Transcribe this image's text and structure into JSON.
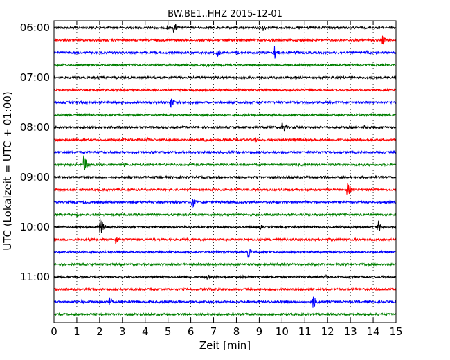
{
  "chart_data": {
    "type": "line",
    "title": "BW.BE1..HHZ 2015-12-01",
    "xlabel": "Zeit  [min]",
    "ylabel": "UTC (Lokalzeit = UTC + 01:00)",
    "xlim": [
      0,
      15
    ],
    "x_ticks": [
      0,
      1,
      2,
      3,
      4,
      5,
      6,
      7,
      8,
      9,
      10,
      11,
      12,
      13,
      14,
      15
    ],
    "y_tick_labels": [
      "06:00",
      "07:00",
      "08:00",
      "09:00",
      "10:00",
      "11:00"
    ],
    "row_minutes": 15,
    "grid": "vertical dotted",
    "series_colors": [
      "#000000",
      "#ff0000",
      "#0000ff",
      "#008000"
    ],
    "traces": [
      {
        "start": "06:00",
        "color": "#000000",
        "events": [
          {
            "x": 5.25,
            "amp": 9
          },
          {
            "x": 9.15,
            "amp": 6
          },
          {
            "x": 4.95,
            "amp": 5
          },
          {
            "x": 9.6,
            "amp": 4
          }
        ]
      },
      {
        "start": "06:15",
        "color": "#ff0000",
        "events": [
          {
            "x": 14.4,
            "amp": 8
          },
          {
            "x": 5.6,
            "amp": 3
          }
        ]
      },
      {
        "start": "06:30",
        "color": "#0000ff",
        "events": [
          {
            "x": 7.15,
            "amp": 8
          },
          {
            "x": 9.65,
            "amp": 12
          },
          {
            "x": 10.55,
            "amp": 7
          },
          {
            "x": 8.0,
            "amp": 4
          },
          {
            "x": 13.7,
            "amp": 5
          }
        ]
      },
      {
        "start": "06:45",
        "color": "#008000",
        "events": [
          {
            "x": 6.7,
            "amp": 3
          }
        ]
      },
      {
        "start": "07:00",
        "color": "#000000",
        "events": [
          {
            "x": 4.2,
            "amp": 3
          }
        ]
      },
      {
        "start": "07:15",
        "color": "#ff0000",
        "events": []
      },
      {
        "start": "07:30",
        "color": "#0000ff",
        "events": [
          {
            "x": 5.1,
            "amp": 10
          },
          {
            "x": 5.5,
            "amp": 3
          }
        ]
      },
      {
        "start": "07:45",
        "color": "#008000",
        "events": [
          {
            "x": 5.2,
            "amp": 3
          }
        ]
      },
      {
        "start": "08:00",
        "color": "#000000",
        "events": [
          {
            "x": 10.0,
            "amp": 11
          },
          {
            "x": 13.6,
            "amp": 3
          },
          {
            "x": 10.65,
            "amp": 3
          }
        ]
      },
      {
        "start": "08:15",
        "color": "#ff0000",
        "events": [
          {
            "x": 8.8,
            "amp": 5
          },
          {
            "x": 6.6,
            "amp": 4
          },
          {
            "x": 4.1,
            "amp": 3
          }
        ]
      },
      {
        "start": "08:30",
        "color": "#0000ff",
        "events": []
      },
      {
        "start": "08:45",
        "color": "#008000",
        "events": [
          {
            "x": 1.3,
            "amp": 15
          },
          {
            "x": 3.05,
            "amp": 4
          },
          {
            "x": 8.95,
            "amp": 3
          }
        ]
      },
      {
        "start": "09:00",
        "color": "#000000",
        "events": []
      },
      {
        "start": "09:15",
        "color": "#ff0000",
        "events": [
          {
            "x": 12.85,
            "amp": 12
          }
        ]
      },
      {
        "start": "09:30",
        "color": "#0000ff",
        "events": [
          {
            "x": 6.05,
            "amp": 10
          },
          {
            "x": 1.3,
            "amp": 3
          },
          {
            "x": 11.0,
            "amp": 3
          }
        ]
      },
      {
        "start": "09:45",
        "color": "#008000",
        "events": [
          {
            "x": 1.0,
            "amp": 4
          }
        ]
      },
      {
        "start": "10:00",
        "color": "#000000",
        "events": [
          {
            "x": 2.0,
            "amp": 19
          },
          {
            "x": 14.2,
            "amp": 10
          },
          {
            "x": 9.05,
            "amp": 4
          }
        ]
      },
      {
        "start": "10:15",
        "color": "#ff0000",
        "events": [
          {
            "x": 2.7,
            "amp": 8
          },
          {
            "x": 12.0,
            "amp": 3
          }
        ]
      },
      {
        "start": "10:30",
        "color": "#0000ff",
        "events": [
          {
            "x": 8.5,
            "amp": 9
          }
        ]
      },
      {
        "start": "10:45",
        "color": "#008000",
        "events": []
      },
      {
        "start": "11:00",
        "color": "#000000",
        "events": [
          {
            "x": 6.7,
            "amp": 5
          },
          {
            "x": 8.2,
            "amp": 4
          },
          {
            "x": 11.9,
            "amp": 4
          }
        ]
      },
      {
        "start": "11:15",
        "color": "#ff0000",
        "events": [
          {
            "x": 9.0,
            "amp": 3
          }
        ]
      },
      {
        "start": "11:30",
        "color": "#0000ff",
        "events": [
          {
            "x": 2.4,
            "amp": 9
          },
          {
            "x": 11.35,
            "amp": 12
          },
          {
            "x": 1.2,
            "amp": 4
          },
          {
            "x": 6.8,
            "amp": 3
          }
        ]
      },
      {
        "start": "11:45",
        "color": "#008000",
        "events": []
      }
    ]
  }
}
